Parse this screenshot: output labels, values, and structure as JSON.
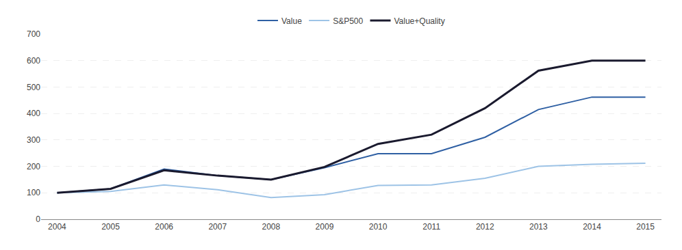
{
  "chart_data": {
    "type": "line",
    "x": [
      2004,
      2005,
      2006,
      2007,
      2008,
      2009,
      2010,
      2011,
      2012,
      2013,
      2014,
      2015
    ],
    "series": [
      {
        "name": "Value",
        "color": "#2E5FA3",
        "values": [
          100,
          115,
          190,
          165,
          150,
          195,
          248,
          248,
          310,
          415,
          462,
          462
        ]
      },
      {
        "name": "S&P500",
        "color": "#9DC3E6",
        "values": [
          100,
          105,
          130,
          112,
          82,
          93,
          128,
          130,
          155,
          200,
          208,
          212
        ]
      },
      {
        "name": "Value+Quality",
        "color": "#1A1A2E",
        "values": [
          100,
          115,
          185,
          165,
          150,
          198,
          285,
          320,
          420,
          562,
          600,
          600
        ]
      }
    ],
    "xlim": [
      2003.7,
      2015.3
    ],
    "xticks": [
      2004,
      2005,
      2006,
      2007,
      2008,
      2009,
      2010,
      2011,
      2012,
      2013,
      2014,
      2015
    ],
    "ylim": [
      0,
      700
    ],
    "yticks": [
      0,
      100,
      200,
      300,
      400,
      500,
      600,
      700
    ],
    "grid": true,
    "legend": "top"
  }
}
